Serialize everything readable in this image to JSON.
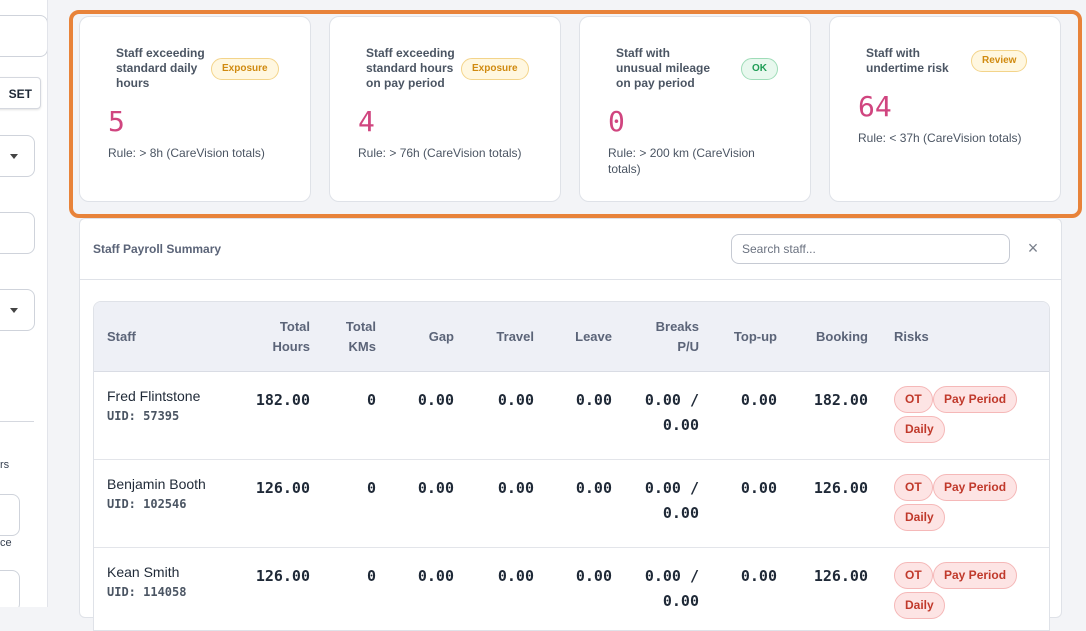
{
  "sidebar": {
    "reset_label": "SET",
    "text_rs": "rs",
    "text_ce": "ce"
  },
  "kpis": [
    {
      "title": "Staff exceeding standard daily hours",
      "badge": "Exposure",
      "value": "5",
      "rule": "Rule: > 8h (CareVision totals)"
    },
    {
      "title": "Staff exceeding standard hours on pay period",
      "badge": "Exposure",
      "value": "4",
      "rule": "Rule: > 76h (CareVision totals)"
    },
    {
      "title": "Staff with unusual mileage on pay period",
      "badge": "OK",
      "value": "0",
      "rule": "Rule: > 200 km (CareVision totals)"
    },
    {
      "title": "Staff with undertime risk",
      "badge": "Review",
      "value": "64",
      "rule": "Rule: < 37h (CareVision totals)"
    }
  ],
  "panel": {
    "title": "Staff Payroll Summary",
    "search_placeholder": "Search staff...",
    "clear_icon": "×"
  },
  "table": {
    "columns": {
      "staff": "Staff",
      "total_hours_1": "Total",
      "total_hours_2": "Hours",
      "total_kms_1": "Total",
      "total_kms_2": "KMs",
      "gap": "Gap",
      "travel": "Travel",
      "leave": "Leave",
      "breaks_1": "Breaks",
      "breaks_2": "P/U",
      "topup": "Top-up",
      "booking": "Booking",
      "risks": "Risks"
    },
    "rows": [
      {
        "name": "Fred Flintstone",
        "uid": "UID: 57395",
        "total_hours": "182.00",
        "total_kms": "0",
        "gap": "0.00",
        "travel": "0.00",
        "leave": "0.00",
        "breaks_a": "0.00 /",
        "breaks_b": "0.00",
        "topup": "0.00",
        "booking": "182.00",
        "risk_ot": "OT",
        "risk_pay": "Pay Period",
        "risk_daily": "Daily"
      },
      {
        "name": "Benjamin Booth",
        "uid": "UID: 102546",
        "total_hours": "126.00",
        "total_kms": "0",
        "gap": "0.00",
        "travel": "0.00",
        "leave": "0.00",
        "breaks_a": "0.00 /",
        "breaks_b": "0.00",
        "topup": "0.00",
        "booking": "126.00",
        "risk_ot": "OT",
        "risk_pay": "Pay Period",
        "risk_daily": "Daily"
      },
      {
        "name": "Kean Smith",
        "uid": "UID: 114058",
        "total_hours": "126.00",
        "total_kms": "0",
        "gap": "0.00",
        "travel": "0.00",
        "leave": "0.00",
        "breaks_a": "0.00 /",
        "breaks_b": "0.00",
        "topup": "0.00",
        "booking": "126.00",
        "risk_ot": "OT",
        "risk_pay": "Pay Period",
        "risk_daily": "Daily"
      }
    ]
  },
  "colors": {
    "highlight": "#e8833a",
    "kpi_value": "#d0457f",
    "risk_pill": "#fde4e4"
  }
}
